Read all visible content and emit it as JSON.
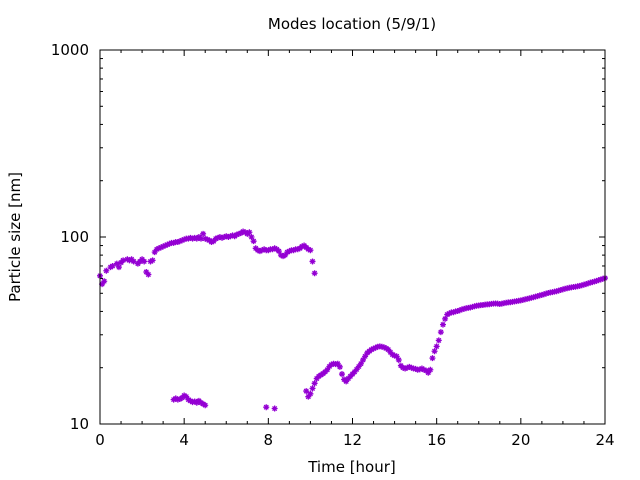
{
  "chart_data": {
    "type": "scatter",
    "title": "Modes location (5/9/1)",
    "xlabel": "Time [hour]",
    "ylabel": "Particle size [nm]",
    "xlim": [
      0,
      24
    ],
    "ylim": [
      10,
      1000
    ],
    "yscale": "log",
    "xticks": [
      "0",
      "4",
      "8",
      "12",
      "16",
      "20",
      "24"
    ],
    "yticks": [
      "10",
      "100",
      "1000"
    ],
    "grid": false,
    "marker": "star",
    "color": "#9400d3",
    "series": [
      {
        "values": [
          [
            0.0,
            62
          ],
          [
            0.1,
            56
          ],
          [
            0.2,
            58
          ],
          [
            0.3,
            66
          ],
          [
            0.5,
            69
          ],
          [
            0.6,
            70
          ],
          [
            0.8,
            72
          ],
          [
            0.9,
            69
          ],
          [
            1.0,
            73
          ],
          [
            1.1,
            75
          ],
          [
            1.3,
            76
          ],
          [
            1.4,
            75
          ],
          [
            1.5,
            76
          ],
          [
            1.6,
            74
          ],
          [
            1.8,
            72
          ],
          [
            1.9,
            74
          ],
          [
            2.0,
            76
          ],
          [
            2.1,
            74
          ],
          [
            2.2,
            65
          ],
          [
            2.3,
            63
          ],
          [
            2.4,
            74
          ],
          [
            2.5,
            75
          ],
          [
            2.6,
            83
          ],
          [
            2.7,
            86
          ],
          [
            2.8,
            87
          ],
          [
            2.9,
            88
          ],
          [
            3.0,
            89
          ],
          [
            3.1,
            90
          ],
          [
            3.2,
            91
          ],
          [
            3.3,
            92
          ],
          [
            3.4,
            93
          ],
          [
            3.5,
            93
          ],
          [
            3.6,
            94
          ],
          [
            3.7,
            94
          ],
          [
            3.8,
            95
          ],
          [
            3.9,
            96
          ],
          [
            4.0,
            97
          ],
          [
            4.1,
            98
          ],
          [
            4.2,
            98
          ],
          [
            4.3,
            99
          ],
          [
            4.4,
            98
          ],
          [
            4.5,
            99
          ],
          [
            4.6,
            98
          ],
          [
            4.7,
            100
          ],
          [
            4.8,
            98
          ],
          [
            4.9,
            104
          ],
          [
            5.0,
            98
          ],
          [
            5.1,
            97
          ],
          [
            5.2,
            96
          ],
          [
            5.3,
            94
          ],
          [
            5.4,
            95
          ],
          [
            5.5,
            98
          ],
          [
            5.6,
            99
          ],
          [
            5.7,
            100
          ],
          [
            5.8,
            99
          ],
          [
            5.9,
            100
          ],
          [
            6.0,
            101
          ],
          [
            6.1,
            100
          ],
          [
            6.2,
            101
          ],
          [
            6.3,
            102
          ],
          [
            6.4,
            101
          ],
          [
            6.5,
            103
          ],
          [
            6.6,
            104
          ],
          [
            6.7,
            105
          ],
          [
            6.8,
            107
          ],
          [
            6.9,
            106
          ],
          [
            7.0,
            104
          ],
          [
            7.1,
            106
          ],
          [
            7.2,
            100
          ],
          [
            7.3,
            95
          ],
          [
            7.4,
            87
          ],
          [
            7.5,
            85
          ],
          [
            7.6,
            84
          ],
          [
            7.7,
            85
          ],
          [
            7.8,
            86
          ],
          [
            7.9,
            85
          ],
          [
            8.0,
            85
          ],
          [
            8.1,
            86
          ],
          [
            8.2,
            86
          ],
          [
            8.3,
            87
          ],
          [
            8.4,
            86
          ],
          [
            8.5,
            84
          ],
          [
            8.6,
            80
          ],
          [
            8.7,
            79
          ],
          [
            8.8,
            80
          ],
          [
            8.9,
            83
          ],
          [
            9.0,
            84
          ],
          [
            9.1,
            85
          ],
          [
            9.2,
            85
          ],
          [
            9.3,
            86
          ],
          [
            9.4,
            86
          ],
          [
            9.5,
            87
          ],
          [
            9.6,
            89
          ],
          [
            9.7,
            90
          ],
          [
            9.8,
            88
          ],
          [
            9.9,
            86
          ],
          [
            10.0,
            85
          ],
          [
            10.1,
            74
          ],
          [
            10.2,
            64
          ]
        ]
      },
      {
        "values": [
          [
            3.5,
            13.5
          ],
          [
            3.6,
            13.7
          ],
          [
            3.7,
            13.5
          ],
          [
            3.8,
            13.6
          ],
          [
            3.9,
            13.8
          ],
          [
            4.0,
            14.2
          ],
          [
            4.1,
            14.0
          ],
          [
            4.2,
            13.5
          ],
          [
            4.3,
            13.3
          ],
          [
            4.4,
            13.1
          ],
          [
            4.5,
            13.2
          ],
          [
            4.6,
            13.0
          ],
          [
            4.7,
            13.3
          ],
          [
            4.8,
            13.0
          ],
          [
            4.9,
            12.8
          ],
          [
            5.0,
            12.6
          ]
        ]
      },
      {
        "values": [
          [
            7.9,
            12.3
          ],
          [
            8.3,
            12.1
          ]
        ]
      },
      {
        "values": [
          [
            9.8,
            15.0
          ],
          [
            9.9,
            14.0
          ],
          [
            10.0,
            14.5
          ],
          [
            10.1,
            15.5
          ],
          [
            10.2,
            16.5
          ],
          [
            10.3,
            17.5
          ],
          [
            10.4,
            18.0
          ],
          [
            10.5,
            18.3
          ],
          [
            10.6,
            18.6
          ],
          [
            10.7,
            19.0
          ],
          [
            10.8,
            19.5
          ],
          [
            10.9,
            20.3
          ],
          [
            11.0,
            20.8
          ],
          [
            11.1,
            21.0
          ],
          [
            11.2,
            20.9
          ],
          [
            11.3,
            21.0
          ],
          [
            11.4,
            20.2
          ],
          [
            11.5,
            18.5
          ],
          [
            11.6,
            17.3
          ],
          [
            11.7,
            16.9
          ],
          [
            11.8,
            17.5
          ],
          [
            11.9,
            18.0
          ],
          [
            12.0,
            18.5
          ],
          [
            12.1,
            19.0
          ],
          [
            12.2,
            19.6
          ],
          [
            12.3,
            20.3
          ],
          [
            12.4,
            21.0
          ],
          [
            12.5,
            22.0
          ],
          [
            12.6,
            23.0
          ],
          [
            12.7,
            24.0
          ],
          [
            12.8,
            24.5
          ],
          [
            12.9,
            25.0
          ],
          [
            13.0,
            25.3
          ],
          [
            13.1,
            25.6
          ],
          [
            13.2,
            25.9
          ],
          [
            13.3,
            26.0
          ],
          [
            13.4,
            25.9
          ],
          [
            13.5,
            25.7
          ],
          [
            13.6,
            25.4
          ],
          [
            13.7,
            25.0
          ],
          [
            13.8,
            24.2
          ],
          [
            13.9,
            23.5
          ],
          [
            14.0,
            23.2
          ],
          [
            14.1,
            23.0
          ],
          [
            14.2,
            22.0
          ],
          [
            14.3,
            20.5
          ],
          [
            14.4,
            20.0
          ],
          [
            14.5,
            19.8
          ],
          [
            14.6,
            20.0
          ],
          [
            14.7,
            20.2
          ],
          [
            14.8,
            20.0
          ],
          [
            14.9,
            19.8
          ],
          [
            15.0,
            19.7
          ],
          [
            15.1,
            19.5
          ],
          [
            15.2,
            19.6
          ],
          [
            15.3,
            19.8
          ],
          [
            15.4,
            19.5
          ],
          [
            15.5,
            19.3
          ],
          [
            15.6,
            18.8
          ],
          [
            15.7,
            19.5
          ],
          [
            15.8,
            22.5
          ],
          [
            15.9,
            24.5
          ],
          [
            16.0,
            26.0
          ],
          [
            16.1,
            28.0
          ],
          [
            16.2,
            31.0
          ],
          [
            16.3,
            34.0
          ],
          [
            16.4,
            36.5
          ],
          [
            16.5,
            38.5
          ],
          [
            16.6,
            39.0
          ],
          [
            16.7,
            39.5
          ],
          [
            16.8,
            39.6
          ],
          [
            16.9,
            40.0
          ],
          [
            17.0,
            40.2
          ],
          [
            17.1,
            40.6
          ],
          [
            17.2,
            41.0
          ],
          [
            17.3,
            41.3
          ],
          [
            17.4,
            41.6
          ],
          [
            17.5,
            41.8
          ],
          [
            17.6,
            42.0
          ],
          [
            17.7,
            42.3
          ],
          [
            17.8,
            42.6
          ],
          [
            17.9,
            42.9
          ],
          [
            18.0,
            43.0
          ],
          [
            18.1,
            43.2
          ],
          [
            18.2,
            43.3
          ],
          [
            18.3,
            43.5
          ],
          [
            18.4,
            43.6
          ],
          [
            18.5,
            43.7
          ],
          [
            18.6,
            43.9
          ],
          [
            18.7,
            44.0
          ],
          [
            18.8,
            44.1
          ],
          [
            18.9,
            44.0
          ],
          [
            19.0,
            43.8
          ],
          [
            19.1,
            44.0
          ],
          [
            19.2,
            44.3
          ],
          [
            19.3,
            44.5
          ],
          [
            19.4,
            44.7
          ],
          [
            19.5,
            44.8
          ],
          [
            19.6,
            45.0
          ],
          [
            19.7,
            45.2
          ],
          [
            19.8,
            45.4
          ],
          [
            19.9,
            45.6
          ],
          [
            20.0,
            45.8
          ],
          [
            20.1,
            46.1
          ],
          [
            20.2,
            46.4
          ],
          [
            20.3,
            46.7
          ],
          [
            20.4,
            47.0
          ],
          [
            20.5,
            47.3
          ],
          [
            20.6,
            47.6
          ],
          [
            20.7,
            48.0
          ],
          [
            20.8,
            48.3
          ],
          [
            20.9,
            48.7
          ],
          [
            21.0,
            49.0
          ],
          [
            21.1,
            49.4
          ],
          [
            21.2,
            49.8
          ],
          [
            21.3,
            50.2
          ],
          [
            21.4,
            50.5
          ],
          [
            21.5,
            50.7
          ],
          [
            21.6,
            51.0
          ],
          [
            21.7,
            51.3
          ],
          [
            21.8,
            51.7
          ],
          [
            21.9,
            52.1
          ],
          [
            22.0,
            52.5
          ],
          [
            22.1,
            52.9
          ],
          [
            22.2,
            53.2
          ],
          [
            22.3,
            53.5
          ],
          [
            22.4,
            53.8
          ],
          [
            22.5,
            54.0
          ],
          [
            22.6,
            54.2
          ],
          [
            22.7,
            54.5
          ],
          [
            22.8,
            54.8
          ],
          [
            22.9,
            55.2
          ],
          [
            23.0,
            55.6
          ],
          [
            23.1,
            56.0
          ],
          [
            23.2,
            56.5
          ],
          [
            23.3,
            57.0
          ],
          [
            23.4,
            57.4
          ],
          [
            23.5,
            57.8
          ],
          [
            23.6,
            58.3
          ],
          [
            23.7,
            58.8
          ],
          [
            23.8,
            59.3
          ],
          [
            23.9,
            59.8
          ],
          [
            24.0,
            60.3
          ]
        ]
      }
    ]
  }
}
